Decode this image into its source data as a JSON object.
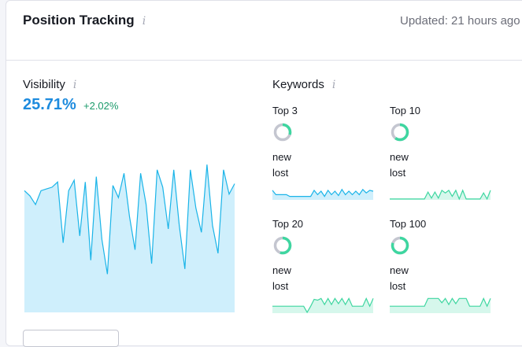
{
  "header": {
    "title": "Position Tracking",
    "info_glyph": "i",
    "updated": "Updated: 21 hours ago"
  },
  "visibility": {
    "label": "Visibility",
    "info_glyph": "i",
    "value": "25.71%",
    "delta": "+2.02%",
    "series": [
      0.7,
      0.67,
      0.62,
      0.7,
      0.71,
      0.72,
      0.75,
      0.4,
      0.7,
      0.76,
      0.44,
      0.75,
      0.3,
      0.78,
      0.42,
      0.22,
      0.73,
      0.66,
      0.8,
      0.55,
      0.36,
      0.8,
      0.62,
      0.28,
      0.82,
      0.72,
      0.48,
      0.82,
      0.5,
      0.25,
      0.82,
      0.6,
      0.46,
      0.85,
      0.5,
      0.34,
      0.82,
      0.68,
      0.74
    ],
    "colors": {
      "line": "#1ab4e8",
      "fill": "#cfeffc"
    }
  },
  "keywords": {
    "label": "Keywords",
    "info_glyph": "i",
    "blocks": [
      {
        "label": "Top 3",
        "new_label": "new",
        "lost_label": "lost",
        "donut_fill": 0.3,
        "line_color": "#1ab4e8",
        "fill_color": "#cfeffc",
        "levels": [
          0.55,
          0.3,
          0.3,
          0.3,
          0.3,
          0.2,
          0.2,
          0.2,
          0.2,
          0.2,
          0.2,
          0.2,
          0.55,
          0.3,
          0.5,
          0.2,
          0.55,
          0.3,
          0.5,
          0.25,
          0.6,
          0.3,
          0.5,
          0.3,
          0.5,
          0.3,
          0.6,
          0.4,
          0.55,
          0.5
        ]
      },
      {
        "label": "Top 10",
        "new_label": "new",
        "lost_label": "lost",
        "donut_fill": 0.6,
        "line_color": "#3ed6a0",
        "fill_color": "#d6f7ec",
        "levels": [
          0.05,
          0.05,
          0.05,
          0.05,
          0.05,
          0.05,
          0.05,
          0.05,
          0.05,
          0.05,
          0.05,
          0.45,
          0.1,
          0.45,
          0.1,
          0.55,
          0.4,
          0.55,
          0.2,
          0.55,
          0.05,
          0.55,
          0.05,
          0.05,
          0.05,
          0.05,
          0.05,
          0.4,
          0.05,
          0.55
        ]
      },
      {
        "label": "Top 20",
        "new_label": "new",
        "lost_label": "lost",
        "donut_fill": 0.55,
        "line_color": "#3ed6a0",
        "fill_color": "#d6f7ec",
        "levels": [
          0.4,
          0.4,
          0.4,
          0.4,
          0.4,
          0.4,
          0.4,
          0.4,
          0.4,
          0.4,
          0.05,
          0.4,
          0.8,
          0.75,
          0.85,
          0.5,
          0.85,
          0.5,
          0.85,
          0.55,
          0.85,
          0.5,
          0.85,
          0.4,
          0.4,
          0.4,
          0.4,
          0.85,
          0.4,
          0.85
        ]
      },
      {
        "label": "Top 100",
        "new_label": "new",
        "lost_label": "lost",
        "donut_fill": 0.8,
        "line_color": "#3ed6a0",
        "fill_color": "#d6f7ec",
        "levels": [
          0.4,
          0.4,
          0.4,
          0.4,
          0.4,
          0.4,
          0.4,
          0.4,
          0.4,
          0.4,
          0.4,
          0.85,
          0.85,
          0.85,
          0.85,
          0.6,
          0.85,
          0.5,
          0.85,
          0.55,
          0.85,
          0.85,
          0.85,
          0.4,
          0.4,
          0.4,
          0.4,
          0.85,
          0.4,
          0.85
        ]
      }
    ]
  }
}
